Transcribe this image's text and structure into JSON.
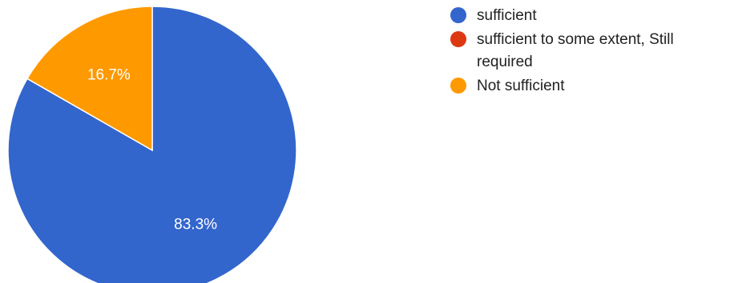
{
  "chart_data": {
    "type": "pie",
    "categories": [
      "sufficient",
      "sufficient to some extent, Still required",
      "Not sufficient"
    ],
    "values": [
      83.3,
      0,
      16.7
    ],
    "value_labels": [
      "83.3%",
      "",
      "16.7%"
    ],
    "colors": [
      "#3366cc",
      "#dc3912",
      "#ff9900"
    ],
    "start_angle_deg": 90,
    "direction": "clockwise",
    "legend_position": "right"
  }
}
